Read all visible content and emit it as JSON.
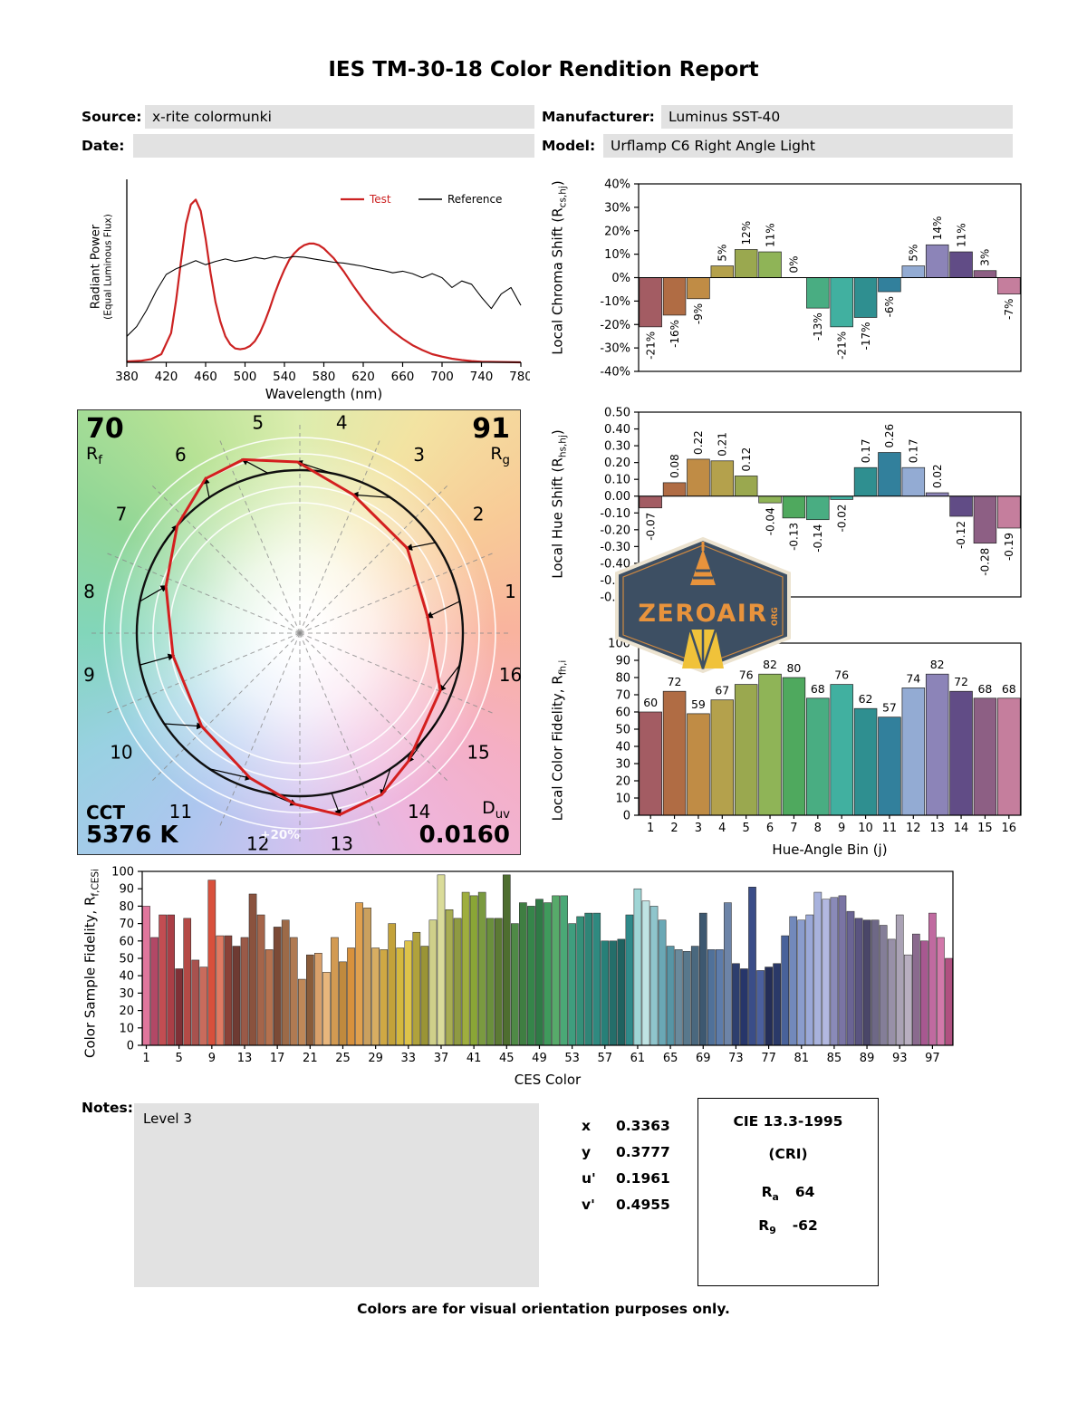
{
  "title": "IES TM-30-18 Color Rendition Report",
  "header": {
    "source_label": "Source:",
    "source_value": "x-rite colormunki",
    "manufacturer_label": "Manufacturer:",
    "manufacturer_value": "Luminus SST-40",
    "date_label": "Date:",
    "date_value": "",
    "model_label": "Model:",
    "model_value": "Urflamp C6 Right Angle Light"
  },
  "cvg": {
    "rf_value": "70",
    "rf_base": "R",
    "rf_sub": "f",
    "rg_value": "91",
    "rg_base": "R",
    "rg_sub": "g",
    "cct_label": "CCT",
    "cct_value": "5376 K",
    "duv_base": "D",
    "duv_sub": "uv",
    "duv_value": "0.0160",
    "ring_label": "+20%",
    "bin_labels": [
      "1",
      "2",
      "3",
      "4",
      "5",
      "6",
      "7",
      "8",
      "9",
      "10",
      "11",
      "12",
      "13",
      "14",
      "15",
      "16"
    ]
  },
  "watermark": {
    "name": "ZEROAIR",
    "org": "ORG"
  },
  "notes": {
    "label": "Notes:",
    "value": "Level 3"
  },
  "chromaticity": [
    {
      "label": "x",
      "value": "0.3363"
    },
    {
      "label": "y",
      "value": "0.3777"
    },
    {
      "label": "u'",
      "value": "0.1961"
    },
    {
      "label": "v'",
      "value": "0.4955"
    }
  ],
  "cri": {
    "title": "CIE 13.3-1995",
    "subtitle": "(CRI)",
    "ra_base": "R",
    "ra_sub": "a",
    "ra_value": "64",
    "r9_base": "R",
    "r9_sub": "9",
    "r9_value": "-62"
  },
  "footer": "Colors are for visual orientation purposes only.",
  "bin_colors": [
    "#a35c63",
    "#b06c44",
    "#c08c45",
    "#b4a14c",
    "#9aa84f",
    "#8fb457",
    "#4fa95e",
    "#49ad82",
    "#41b0a0",
    "#2f8f90",
    "#32809c",
    "#93abd3",
    "#8c84b8",
    "#614c86",
    "#8d5f84",
    "#c57e9d"
  ],
  "chart_data": [
    {
      "id": "spd",
      "type": "line",
      "xlabel": "Wavelength (nm)",
      "ylabel_line1": "Radiant Power",
      "ylabel_line2": "(Equal Luminous Flux)",
      "xlim": [
        380,
        780
      ],
      "ymax": 1.08,
      "xticks": [
        380,
        420,
        460,
        500,
        540,
        580,
        620,
        660,
        700,
        740,
        780
      ],
      "series": [
        {
          "name": "Test",
          "color": "#cc2222",
          "label_color": "#cc2222",
          "width": 2.2,
          "x": [
            380,
            395,
            405,
            415,
            425,
            430,
            435,
            440,
            445,
            450,
            455,
            460,
            465,
            470,
            475,
            480,
            485,
            490,
            495,
            500,
            505,
            510,
            515,
            520,
            525,
            530,
            535,
            540,
            545,
            550,
            555,
            560,
            565,
            570,
            575,
            580,
            585,
            590,
            595,
            600,
            610,
            620,
            630,
            640,
            650,
            660,
            670,
            680,
            690,
            700,
            710,
            720,
            730,
            740,
            780
          ],
          "y": [
            0.005,
            0.01,
            0.02,
            0.05,
            0.18,
            0.38,
            0.62,
            0.85,
            0.97,
            1.0,
            0.93,
            0.76,
            0.55,
            0.37,
            0.25,
            0.16,
            0.11,
            0.085,
            0.08,
            0.085,
            0.1,
            0.13,
            0.18,
            0.25,
            0.33,
            0.42,
            0.5,
            0.57,
            0.63,
            0.67,
            0.7,
            0.72,
            0.73,
            0.73,
            0.72,
            0.7,
            0.67,
            0.64,
            0.6,
            0.56,
            0.47,
            0.385,
            0.31,
            0.245,
            0.19,
            0.145,
            0.105,
            0.075,
            0.05,
            0.035,
            0.022,
            0.014,
            0.008,
            0.004,
            0.0
          ]
        },
        {
          "name": "Reference",
          "color": "#000000",
          "label_color": "#000000",
          "width": 1.1,
          "x": [
            380,
            390,
            400,
            410,
            420,
            430,
            440,
            450,
            460,
            470,
            480,
            490,
            500,
            510,
            520,
            530,
            540,
            550,
            560,
            570,
            580,
            590,
            600,
            610,
            620,
            630,
            640,
            650,
            660,
            670,
            680,
            690,
            700,
            710,
            720,
            730,
            740,
            750,
            760,
            770,
            780
          ],
          "y": [
            0.16,
            0.22,
            0.32,
            0.44,
            0.54,
            0.575,
            0.6,
            0.625,
            0.6,
            0.62,
            0.635,
            0.62,
            0.63,
            0.645,
            0.635,
            0.65,
            0.64,
            0.65,
            0.645,
            0.635,
            0.625,
            0.615,
            0.61,
            0.6,
            0.59,
            0.575,
            0.565,
            0.55,
            0.56,
            0.545,
            0.52,
            0.545,
            0.52,
            0.46,
            0.5,
            0.48,
            0.4,
            0.33,
            0.42,
            0.46,
            0.35
          ]
        }
      ]
    },
    {
      "id": "chroma",
      "type": "bar",
      "ylabel_pre": "Local Chroma Shift (R",
      "ylabel_sub": "cs,hj",
      "ylabel_post": ")",
      "ylim": [
        -40,
        40
      ],
      "ytick_values": [
        40,
        30,
        20,
        10,
        0,
        -10,
        -20,
        -30,
        -40
      ],
      "ytick_labels": [
        "40%",
        "30%",
        "20%",
        "10%",
        "0%",
        "-10%",
        "-20%",
        "-30%",
        "-40%"
      ],
      "categories": [
        1,
        2,
        3,
        4,
        5,
        6,
        7,
        8,
        9,
        10,
        11,
        12,
        13,
        14,
        15,
        16
      ],
      "values": [
        -21,
        -16,
        -9,
        5,
        12,
        11,
        0,
        -13,
        -21,
        -17,
        -6,
        5,
        14,
        11,
        3,
        -7
      ],
      "value_labels": [
        "-21%",
        "-16%",
        "-9%",
        "5%",
        "12%",
        "11%",
        "0%",
        "-13%",
        "-21%",
        "-17%",
        "-6%",
        "5%",
        "14%",
        "11%",
        "3%",
        "-7%"
      ]
    },
    {
      "id": "hue",
      "type": "bar",
      "ylabel_pre": "Local Hue Shift (R",
      "ylabel_sub": "hs,hj",
      "ylabel_post": ")",
      "ylim": [
        -0.6,
        0.5
      ],
      "ytick_values": [
        0.5,
        0.4,
        0.3,
        0.2,
        0.1,
        0,
        -0.1,
        -0.2,
        -0.3,
        -0.4,
        -0.5,
        -0.6
      ],
      "ytick_labels": [
        "0.50",
        "0.40",
        "0.30",
        "0.20",
        "0.10",
        "0.00",
        "-0.10",
        "-0.20",
        "-0.30",
        "-0.40",
        "-0.50",
        "-0.60"
      ],
      "categories": [
        1,
        2,
        3,
        4,
        5,
        6,
        7,
        8,
        9,
        10,
        11,
        12,
        13,
        14,
        15,
        16
      ],
      "values": [
        -0.07,
        0.08,
        0.22,
        0.21,
        0.12,
        -0.04,
        -0.13,
        -0.14,
        -0.02,
        0.17,
        0.26,
        0.17,
        0.02,
        -0.12,
        -0.28,
        -0.19
      ],
      "value_labels": [
        "-0.07",
        "0.08",
        "0.22",
        "0.21",
        "0.12",
        "-0.04",
        "-0.13",
        "-0.14",
        "-0.02",
        "0.17",
        "0.26",
        "0.17",
        "0.02",
        "-0.12",
        "-0.28",
        "-0.19"
      ]
    },
    {
      "id": "rfh",
      "type": "bar",
      "ylabel_pre": "Local Color Fidelity, R",
      "ylabel_sub": "fh,i",
      "ylabel_post": "",
      "xlabel": "Hue-Angle Bin (j)",
      "ylim": [
        0,
        100
      ],
      "ytick_values": [
        100,
        90,
        80,
        70,
        60,
        50,
        40,
        30,
        20,
        10,
        0
      ],
      "ytick_labels": [
        "100",
        "90",
        "80",
        "70",
        "60",
        "50",
        "40",
        "30",
        "20",
        "10",
        "0"
      ],
      "xtick_values": [
        1,
        2,
        3,
        4,
        5,
        6,
        7,
        8,
        9,
        10,
        11,
        12,
        13,
        14,
        15,
        16
      ],
      "xtick_labels": [
        "1",
        "2",
        "3",
        "4",
        "5",
        "6",
        "7",
        "8",
        "9",
        "10",
        "11",
        "12",
        "13",
        "14",
        "15",
        "16"
      ],
      "categories": [
        1,
        2,
        3,
        4,
        5,
        6,
        7,
        8,
        9,
        10,
        11,
        12,
        13,
        14,
        15,
        16
      ],
      "values": [
        60,
        72,
        59,
        67,
        76,
        82,
        80,
        68,
        76,
        62,
        57,
        74,
        82,
        72,
        68,
        68
      ],
      "value_labels": [
        "60",
        "72",
        "59",
        "67",
        "76",
        "82",
        "80",
        "68",
        "76",
        "62",
        "57",
        "74",
        "82",
        "72",
        "68",
        "68"
      ]
    },
    {
      "id": "ces",
      "type": "bar",
      "ylabel_pre": "Color Sample Fidelity, R",
      "ylabel_sub": "f,CESi",
      "ylabel_post": "",
      "xlabel": "CES Color",
      "ylim": [
        0,
        100
      ],
      "ytick_values": [
        100,
        90,
        80,
        70,
        60,
        50,
        40,
        30,
        20,
        10,
        0
      ],
      "ytick_labels": [
        "100",
        "90",
        "80",
        "70",
        "60",
        "50",
        "40",
        "30",
        "20",
        "10",
        "0"
      ],
      "xtick_values": [
        1,
        5,
        9,
        13,
        17,
        21,
        25,
        29,
        33,
        37,
        41,
        45,
        49,
        53,
        57,
        61,
        65,
        69,
        73,
        77,
        81,
        85,
        89,
        93,
        97
      ],
      "xtick_labels": [
        "1",
        "5",
        "9",
        "13",
        "17",
        "21",
        "25",
        "29",
        "33",
        "37",
        "41",
        "45",
        "49",
        "53",
        "57",
        "61",
        "65",
        "69",
        "73",
        "77",
        "81",
        "85",
        "89",
        "93",
        "97"
      ],
      "values": [
        80,
        62,
        75,
        75,
        44,
        73,
        49,
        45,
        95,
        63,
        63,
        57,
        62,
        87,
        75,
        55,
        68,
        72,
        62,
        38,
        52,
        53,
        42,
        62,
        48,
        56,
        82,
        79,
        56,
        55,
        70,
        56,
        60,
        65,
        57,
        72,
        98,
        78,
        73,
        88,
        86,
        88,
        73,
        73,
        98,
        70,
        82,
        80,
        84,
        82,
        86,
        86,
        70,
        74,
        76,
        76,
        60,
        60,
        61,
        75,
        90,
        83,
        80,
        72,
        57,
        55,
        54,
        57,
        76,
        55,
        55,
        82,
        47,
        44,
        91,
        43,
        45,
        47,
        63,
        74,
        72,
        75,
        88,
        84,
        85,
        86,
        77,
        73,
        72,
        72,
        69,
        61,
        75,
        52,
        64,
        60,
        76,
        62,
        50
      ],
      "colors": [
        "#e0769c",
        "#b24866",
        "#c24d52",
        "#aa3e46",
        "#7e3036",
        "#b44a46",
        "#a8524e",
        "#c96b5c",
        "#d8503c",
        "#e07a62",
        "#8a4238",
        "#6e3a32",
        "#9a5a48",
        "#8a523e",
        "#a5654a",
        "#b5714e",
        "#7c4a36",
        "#9c6a48",
        "#b07a52",
        "#c08858",
        "#8a5c3a",
        "#d9a06a",
        "#e8b67c",
        "#d29a52",
        "#c08a3e",
        "#d8913c",
        "#e0a04e",
        "#caa05e",
        "#d7ad62",
        "#cfa844",
        "#c3a23a",
        "#d4b83e",
        "#ddc34a",
        "#b0a23c",
        "#9a9436",
        "#cfd08a",
        "#dadc9a",
        "#a8ad52",
        "#8f9a42",
        "#9fae3e",
        "#8aa636",
        "#7a9a40",
        "#6a8f3c",
        "#5c7a34",
        "#4e6e30",
        "#4f8a46",
        "#3f7e42",
        "#35854a",
        "#2f7a46",
        "#3f9a5c",
        "#57aa6a",
        "#4aa876",
        "#3f9e7e",
        "#359079",
        "#2f8577",
        "#2f8a80",
        "#288078",
        "#246e6a",
        "#1f6260",
        "#2f8a8a",
        "#9fd5d5",
        "#bfe3e3",
        "#8fc5cc",
        "#6aa8b5",
        "#5795a5",
        "#6a8a9c",
        "#58788c",
        "#4a687e",
        "#3d5870",
        "#50719a",
        "#5d7cab",
        "#6d84a8",
        "#2e3f6e",
        "#27366a",
        "#3a4d88",
        "#4a5f9e",
        "#242e58",
        "#2a3968",
        "#49629a",
        "#7289bb",
        "#8a9ccd",
        "#9aa8d8",
        "#a8b2dd",
        "#b2b8e0",
        "#8a8ab8",
        "#7a74a4",
        "#6a6494",
        "#5a5480",
        "#4a4668",
        "#6e6886",
        "#847e98",
        "#9890a8",
        "#aaa2b5",
        "#b8aec0",
        "#8a6a8e",
        "#a85890",
        "#c06aa0",
        "#d278aa",
        "#b05080"
      ]
    }
  ]
}
